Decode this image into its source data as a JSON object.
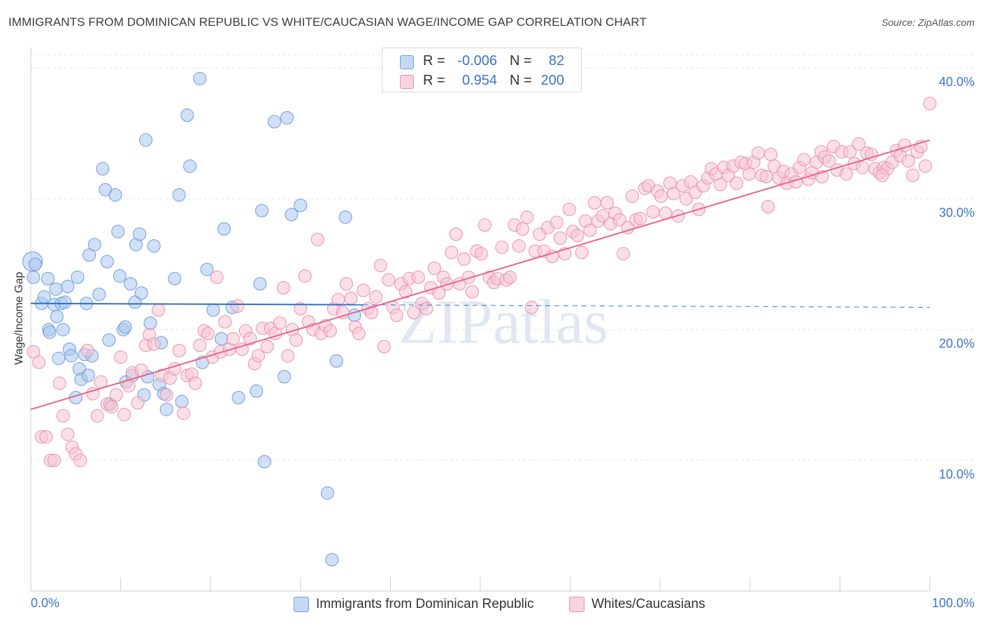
{
  "title": "IMMIGRANTS FROM DOMINICAN REPUBLIC VS WHITE/CAUCASIAN WAGE/INCOME GAP CORRELATION CHART",
  "source": "Source: ZipAtlas.com",
  "watermark": "ZIPatlas",
  "legend_top": {
    "rows": [
      {
        "r_label": "R =",
        "r_value": "-0.006",
        "n_label": "N =",
        "n_value": "82"
      },
      {
        "r_label": "R =",
        "r_value": "0.954",
        "n_label": "N =",
        "n_value": "200"
      }
    ]
  },
  "chart_data": {
    "type": "scatter",
    "title": "IMMIGRANTS FROM DOMINICAN REPUBLIC VS WHITE/CAUCASIAN WAGE/INCOME GAP CORRELATION CHART",
    "xlabel": "",
    "ylabel": "Wage/Income Gap",
    "xlim": [
      0,
      100
    ],
    "ylim": [
      0,
      42
    ],
    "x_ticks": [
      "0.0%",
      "100.0%"
    ],
    "y_ticks": [
      {
        "value": 10,
        "label": "10.0%"
      },
      {
        "value": 20,
        "label": "20.0%"
      },
      {
        "value": 30,
        "label": "30.0%"
      },
      {
        "value": 40,
        "label": "40.0%"
      }
    ],
    "grid": true,
    "legend_position": "bottom",
    "series": [
      {
        "name": "Immigrants from Dominican Republic",
        "color": "#a9c6f0",
        "edge_color": "#6f9bd9",
        "line_color": "#2f6fcc",
        "r": -0.006,
        "n": 82,
        "trend": {
          "x0": 0,
          "y0": 22.0,
          "x1": 37,
          "y1": 21.9,
          "dash_to": 100,
          "dash_y": 21.7
        },
        "points": [
          [
            0.2,
            25.2
          ],
          [
            0.3,
            24.0
          ],
          [
            0.5,
            25.0
          ],
          [
            1.2,
            22.0
          ],
          [
            1.5,
            22.5
          ],
          [
            1.9,
            23.9
          ],
          [
            2.0,
            20.0
          ],
          [
            2.1,
            19.8
          ],
          [
            2.6,
            21.9
          ],
          [
            2.8,
            23.1
          ],
          [
            2.9,
            21.0
          ],
          [
            3.1,
            17.8
          ],
          [
            3.4,
            22.0
          ],
          [
            3.6,
            20.0
          ],
          [
            3.8,
            22.1
          ],
          [
            4.1,
            23.3
          ],
          [
            4.3,
            18.5
          ],
          [
            4.5,
            18.0
          ],
          [
            5.0,
            14.8
          ],
          [
            5.2,
            24.0
          ],
          [
            5.4,
            17.0
          ],
          [
            5.6,
            16.2
          ],
          [
            6.0,
            18.1
          ],
          [
            6.4,
            16.5
          ],
          [
            6.5,
            25.7
          ],
          [
            6.8,
            18.0
          ],
          [
            7.1,
            26.5
          ],
          [
            7.6,
            22.7
          ],
          [
            8.0,
            32.3
          ],
          [
            8.3,
            30.7
          ],
          [
            8.5,
            25.2
          ],
          [
            8.7,
            19.2
          ],
          [
            8.8,
            14.3
          ],
          [
            9.4,
            30.3
          ],
          [
            9.7,
            27.5
          ],
          [
            9.9,
            24.1
          ],
          [
            10.3,
            20.0
          ],
          [
            10.5,
            20.2
          ],
          [
            10.6,
            16.0
          ],
          [
            11.1,
            23.5
          ],
          [
            11.3,
            16.5
          ],
          [
            11.6,
            22.1
          ],
          [
            11.7,
            26.5
          ],
          [
            12.1,
            27.3
          ],
          [
            12.3,
            22.8
          ],
          [
            12.6,
            15.0
          ],
          [
            12.8,
            34.5
          ],
          [
            13.0,
            16.4
          ],
          [
            13.3,
            20.5
          ],
          [
            13.7,
            26.4
          ],
          [
            14.3,
            15.8
          ],
          [
            14.5,
            19.0
          ],
          [
            14.8,
            15.1
          ],
          [
            15.1,
            13.9
          ],
          [
            16.0,
            23.9
          ],
          [
            16.5,
            30.3
          ],
          [
            16.8,
            14.5
          ],
          [
            17.4,
            36.4
          ],
          [
            17.7,
            32.5
          ],
          [
            18.8,
            39.2
          ],
          [
            19.1,
            17.5
          ],
          [
            19.6,
            24.6
          ],
          [
            20.3,
            21.5
          ],
          [
            21.2,
            19.3
          ],
          [
            21.5,
            27.7
          ],
          [
            22.4,
            21.7
          ],
          [
            23.1,
            14.8
          ],
          [
            25.1,
            15.3
          ],
          [
            25.5,
            23.5
          ],
          [
            25.7,
            29.1
          ],
          [
            26.0,
            9.9
          ],
          [
            27.1,
            35.9
          ],
          [
            28.2,
            16.4
          ],
          [
            28.5,
            36.2
          ],
          [
            29.0,
            28.8
          ],
          [
            30.0,
            29.5
          ],
          [
            33.0,
            7.5
          ],
          [
            33.5,
            2.4
          ],
          [
            34.0,
            17.6
          ],
          [
            35.0,
            28.6
          ],
          [
            36.0,
            21.1
          ],
          [
            6.2,
            22.0
          ]
        ]
      },
      {
        "name": "Whites/Caucasians",
        "color": "#f7c4d3",
        "edge_color": "#e890ab",
        "line_color": "#e6648c",
        "r": 0.954,
        "n": 200,
        "trend": {
          "x0": 0,
          "y0": 13.9,
          "x1": 100,
          "y1": 34.5
        },
        "points": [
          [
            0.3,
            18.3
          ],
          [
            0.9,
            17.5
          ],
          [
            1.2,
            11.8
          ],
          [
            1.7,
            11.8
          ],
          [
            2.2,
            10.0
          ],
          [
            2.6,
            10.0
          ],
          [
            3.2,
            15.9
          ],
          [
            3.6,
            13.4
          ],
          [
            4.1,
            12.0
          ],
          [
            4.6,
            11.0
          ],
          [
            5.0,
            10.5
          ],
          [
            5.5,
            10.0
          ],
          [
            6.3,
            18.4
          ],
          [
            6.9,
            15.1
          ],
          [
            7.4,
            13.4
          ],
          [
            7.8,
            16.0
          ],
          [
            8.5,
            14.3
          ],
          [
            9.0,
            14.1
          ],
          [
            9.5,
            15.0
          ],
          [
            10.0,
            17.9
          ],
          [
            10.4,
            13.5
          ],
          [
            10.9,
            15.7
          ],
          [
            11.3,
            16.7
          ],
          [
            11.9,
            14.4
          ],
          [
            12.3,
            16.9
          ],
          [
            12.8,
            18.8
          ],
          [
            13.2,
            19.6
          ],
          [
            13.7,
            18.9
          ],
          [
            14.2,
            21.5
          ],
          [
            14.6,
            16.5
          ],
          [
            15.1,
            15.0
          ],
          [
            15.5,
            16.3
          ],
          [
            16.0,
            17.0
          ],
          [
            16.5,
            18.4
          ],
          [
            17.0,
            13.6
          ],
          [
            17.4,
            16.5
          ],
          [
            17.9,
            16.6
          ],
          [
            18.3,
            15.9
          ],
          [
            18.8,
            18.8
          ],
          [
            19.3,
            19.9
          ],
          [
            19.7,
            19.7
          ],
          [
            20.2,
            17.9
          ],
          [
            20.7,
            24.0
          ],
          [
            21.1,
            18.3
          ],
          [
            21.6,
            20.6
          ],
          [
            22.1,
            18.5
          ],
          [
            22.5,
            19.3
          ],
          [
            23.0,
            21.8
          ],
          [
            23.5,
            18.5
          ],
          [
            23.9,
            19.9
          ],
          [
            24.4,
            19.3
          ],
          [
            24.9,
            17.4
          ],
          [
            25.3,
            18.0
          ],
          [
            25.8,
            20.1
          ],
          [
            26.3,
            18.7
          ],
          [
            26.7,
            20.1
          ],
          [
            27.2,
            19.7
          ],
          [
            27.7,
            20.5
          ],
          [
            28.1,
            23.2
          ],
          [
            28.6,
            18.0
          ],
          [
            29.1,
            20.0
          ],
          [
            29.5,
            19.2
          ],
          [
            30.0,
            21.6
          ],
          [
            30.5,
            24.1
          ],
          [
            30.9,
            20.6
          ],
          [
            31.4,
            20.0
          ],
          [
            31.9,
            26.9
          ],
          [
            32.3,
            19.7
          ],
          [
            32.8,
            20.3
          ],
          [
            33.3,
            19.9
          ],
          [
            33.7,
            21.6
          ],
          [
            34.2,
            22.3
          ],
          [
            34.7,
            21.3
          ],
          [
            35.1,
            23.5
          ],
          [
            35.6,
            22.4
          ],
          [
            36.1,
            20.2
          ],
          [
            36.5,
            19.7
          ],
          [
            37.0,
            23.0
          ],
          [
            37.5,
            21.6
          ],
          [
            37.9,
            21.3
          ],
          [
            38.4,
            22.5
          ],
          [
            38.9,
            24.9
          ],
          [
            39.3,
            18.7
          ],
          [
            39.8,
            23.8
          ],
          [
            40.3,
            21.7
          ],
          [
            40.7,
            21.1
          ],
          [
            41.2,
            23.5
          ],
          [
            41.7,
            22.9
          ],
          [
            42.1,
            23.9
          ],
          [
            42.6,
            21.3
          ],
          [
            43.1,
            24.0
          ],
          [
            43.5,
            22.0
          ],
          [
            44.0,
            21.6
          ],
          [
            44.5,
            23.2
          ],
          [
            44.9,
            24.7
          ],
          [
            45.4,
            22.8
          ],
          [
            45.9,
            24.0
          ],
          [
            46.3,
            23.5
          ],
          [
            46.8,
            25.9
          ],
          [
            47.3,
            27.3
          ],
          [
            47.7,
            23.5
          ],
          [
            48.2,
            25.4
          ],
          [
            48.7,
            24.0
          ],
          [
            49.1,
            22.9
          ],
          [
            49.6,
            26.0
          ],
          [
            50.1,
            25.8
          ],
          [
            50.5,
            28.0
          ],
          [
            51.0,
            24.0
          ],
          [
            51.5,
            23.6
          ],
          [
            51.9,
            23.9
          ],
          [
            52.4,
            26.3
          ],
          [
            52.9,
            23.8
          ],
          [
            53.3,
            24.0
          ],
          [
            53.8,
            28.0
          ],
          [
            54.3,
            26.4
          ],
          [
            54.7,
            27.7
          ],
          [
            55.2,
            28.6
          ],
          [
            55.7,
            21.7
          ],
          [
            56.1,
            26.0
          ],
          [
            56.6,
            27.3
          ],
          [
            57.1,
            26.0
          ],
          [
            57.5,
            27.8
          ],
          [
            58.0,
            25.6
          ],
          [
            58.5,
            28.2
          ],
          [
            58.9,
            27.0
          ],
          [
            59.4,
            25.8
          ],
          [
            59.9,
            29.2
          ],
          [
            60.3,
            27.5
          ],
          [
            60.8,
            27.2
          ],
          [
            61.3,
            25.9
          ],
          [
            61.7,
            28.3
          ],
          [
            62.2,
            27.6
          ],
          [
            62.7,
            29.7
          ],
          [
            63.1,
            28.3
          ],
          [
            63.6,
            28.7
          ],
          [
            64.1,
            29.7
          ],
          [
            64.5,
            28.1
          ],
          [
            65.0,
            28.9
          ],
          [
            65.5,
            28.4
          ],
          [
            65.9,
            25.8
          ],
          [
            66.4,
            27.8
          ],
          [
            66.9,
            30.2
          ],
          [
            67.3,
            28.4
          ],
          [
            67.8,
            28.5
          ],
          [
            68.3,
            30.8
          ],
          [
            68.7,
            31.0
          ],
          [
            69.2,
            29.0
          ],
          [
            69.7,
            30.6
          ],
          [
            70.1,
            30.2
          ],
          [
            70.6,
            28.9
          ],
          [
            71.1,
            31.2
          ],
          [
            71.5,
            30.4
          ],
          [
            72.0,
            28.7
          ],
          [
            72.5,
            31.0
          ],
          [
            72.9,
            30.0
          ],
          [
            73.4,
            31.3
          ],
          [
            73.9,
            30.5
          ],
          [
            74.3,
            29.2
          ],
          [
            74.8,
            31.0
          ],
          [
            75.3,
            31.6
          ],
          [
            75.7,
            32.3
          ],
          [
            76.2,
            31.9
          ],
          [
            76.7,
            31.1
          ],
          [
            77.1,
            32.4
          ],
          [
            77.6,
            31.8
          ],
          [
            78.1,
            32.5
          ],
          [
            78.5,
            31.2
          ],
          [
            79.0,
            32.8
          ],
          [
            79.5,
            32.7
          ],
          [
            79.9,
            31.9
          ],
          [
            80.4,
            32.8
          ],
          [
            80.9,
            33.5
          ],
          [
            81.3,
            31.8
          ],
          [
            81.8,
            31.7
          ],
          [
            82.3,
            33.4
          ],
          [
            82.7,
            32.5
          ],
          [
            83.2,
            31.6
          ],
          [
            83.7,
            32.1
          ],
          [
            84.1,
            31.2
          ],
          [
            84.6,
            31.9
          ],
          [
            85.1,
            31.3
          ],
          [
            85.5,
            32.4
          ],
          [
            86.0,
            33.0
          ],
          [
            86.5,
            31.5
          ],
          [
            86.9,
            32.0
          ],
          [
            87.4,
            32.8
          ],
          [
            87.9,
            33.6
          ],
          [
            88.3,
            33.2
          ],
          [
            88.8,
            32.9
          ],
          [
            89.3,
            34.0
          ],
          [
            89.7,
            32.2
          ],
          [
            90.2,
            33.6
          ],
          [
            90.7,
            31.9
          ],
          [
            91.1,
            33.6
          ],
          [
            91.6,
            32.7
          ],
          [
            92.1,
            34.2
          ],
          [
            92.5,
            32.4
          ],
          [
            93.0,
            33.5
          ],
          [
            93.5,
            33.4
          ],
          [
            93.9,
            32.3
          ],
          [
            94.4,
            32.0
          ],
          [
            94.9,
            32.4
          ],
          [
            95.3,
            32.3
          ],
          [
            95.8,
            32.8
          ],
          [
            96.3,
            33.7
          ],
          [
            96.7,
            33.3
          ],
          [
            97.2,
            34.1
          ],
          [
            97.6,
            32.9
          ],
          [
            98.1,
            31.8
          ],
          [
            98.6,
            33.6
          ],
          [
            99.0,
            34.0
          ],
          [
            99.5,
            32.5
          ],
          [
            100.0,
            37.3
          ],
          [
            94.7,
            31.8
          ],
          [
            88.0,
            31.7
          ],
          [
            82.0,
            29.4
          ]
        ]
      }
    ]
  }
}
